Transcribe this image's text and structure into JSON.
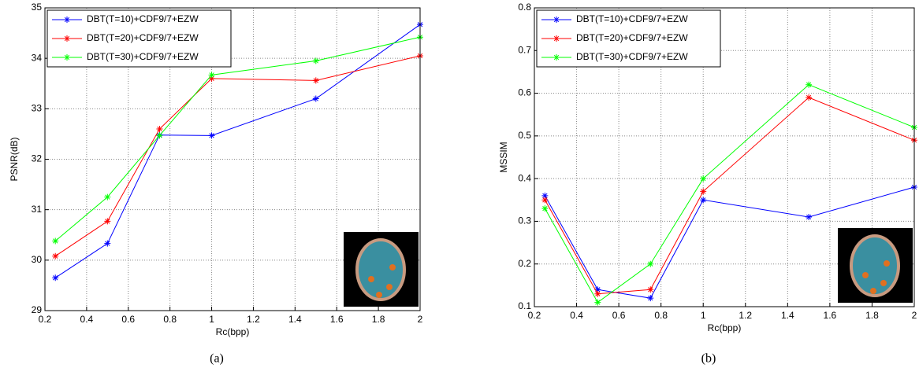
{
  "chart_data": [
    {
      "type": "line",
      "caption": "(a)",
      "xlabel": "Rc(bpp)",
      "ylabel": "PSNR(dB)",
      "x": [
        0.25,
        0.5,
        0.75,
        1,
        1.5,
        2
      ],
      "xlim": [
        0.2,
        2
      ],
      "xticks": [
        0.2,
        0.4,
        0.6,
        0.8,
        1,
        1.2,
        1.4,
        1.6,
        1.8,
        2
      ],
      "ylim": [
        29,
        35
      ],
      "yticks": [
        29,
        30,
        31,
        32,
        33,
        34,
        35
      ],
      "grid": true,
      "legend": "upper-left",
      "series": [
        {
          "name": "DBT(T=10)+CDF9/7+EZW",
          "color": "#0000ff",
          "values": [
            29.65,
            30.33,
            32.48,
            32.47,
            33.2,
            34.67
          ]
        },
        {
          "name": "DBT(T=20)+CDF9/7+EZW",
          "color": "#ff0000",
          "values": [
            30.08,
            30.77,
            32.6,
            33.6,
            33.56,
            34.05
          ]
        },
        {
          "name": "DBT(T=30)+CDF9/7+EZW",
          "color": "#00ff00",
          "values": [
            30.38,
            31.25,
            32.47,
            33.67,
            33.95,
            34.42
          ]
        }
      ]
    },
    {
      "type": "line",
      "caption": "(b)",
      "xlabel": "Rc(bpp)",
      "ylabel": "MSSIM",
      "x": [
        0.25,
        0.5,
        0.75,
        1,
        1.5,
        2
      ],
      "xlim": [
        0.2,
        2
      ],
      "xticks": [
        0.2,
        0.4,
        0.6,
        0.8,
        1,
        1.2,
        1.4,
        1.6,
        1.8,
        2
      ],
      "ylim": [
        0.1,
        0.8
      ],
      "yticks": [
        0.1,
        0.2,
        0.3,
        0.4,
        0.5,
        0.6,
        0.7,
        0.8
      ],
      "grid": true,
      "legend": "upper-left",
      "series": [
        {
          "name": "DBT(T=10)+CDF9/7+EZW",
          "color": "#0000ff",
          "values": [
            0.36,
            0.14,
            0.12,
            0.35,
            0.31,
            0.38
          ]
        },
        {
          "name": "DBT(T=20)+CDF9/7+EZW",
          "color": "#ff0000",
          "values": [
            0.35,
            0.13,
            0.14,
            0.37,
            0.59,
            0.49
          ]
        },
        {
          "name": "DBT(T=30)+CDF9/7+EZW",
          "color": "#00ff00",
          "values": [
            0.33,
            0.11,
            0.2,
            0.4,
            0.62,
            0.52
          ]
        }
      ]
    }
  ]
}
